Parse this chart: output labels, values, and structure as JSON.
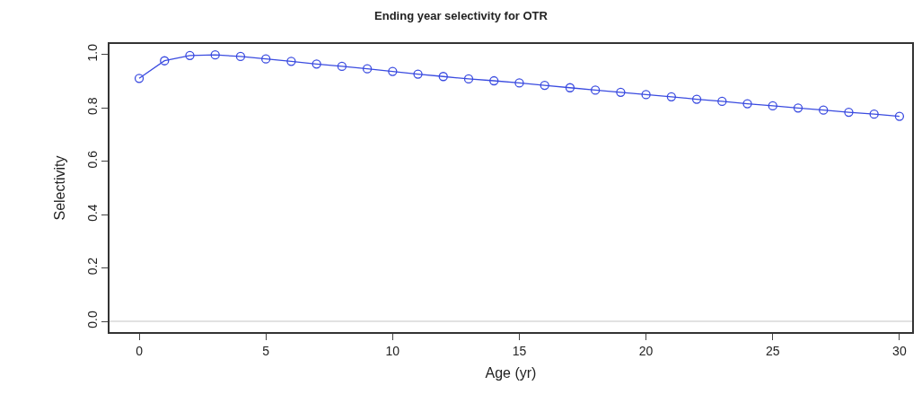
{
  "chart_data": {
    "type": "line",
    "title": "Ending year selectivity for OTR",
    "xlabel": "Age (yr)",
    "ylabel": "Selectivity",
    "x": [
      0,
      1,
      2,
      3,
      4,
      5,
      6,
      7,
      8,
      9,
      10,
      11,
      12,
      13,
      14,
      15,
      16,
      17,
      18,
      19,
      20,
      21,
      22,
      23,
      24,
      25,
      26,
      27,
      28,
      29,
      30
    ],
    "series": [
      {
        "color": "#3a4be0",
        "values": [
          0.911,
          0.977,
          0.997,
          0.999,
          0.993,
          0.984,
          0.975,
          0.965,
          0.956,
          0.947,
          0.937,
          0.927,
          0.918,
          0.909,
          0.902,
          0.894,
          0.885,
          0.876,
          0.867,
          0.859,
          0.85,
          0.842,
          0.833,
          0.825,
          0.816,
          0.808,
          0.8,
          0.792,
          0.784,
          0.777,
          0.769
        ]
      }
    ],
    "xlim": [
      -1.17,
      30.5
    ],
    "xticks": [
      0,
      5,
      10,
      15,
      20,
      25,
      30
    ],
    "ylim": [
      -0.04,
      1.04
    ],
    "yticks": [
      {
        "value": 0,
        "label": "0.0"
      },
      {
        "value": 0.2,
        "label": "0.2"
      },
      {
        "value": 0.4,
        "label": "0.4"
      },
      {
        "value": 0.6,
        "label": "0.6"
      },
      {
        "value": 0.8,
        "label": "0.8"
      },
      {
        "value": 1,
        "label": "1.0"
      }
    ],
    "ref_lines": [
      {
        "axis": "y",
        "value": 0,
        "color": "#d9d9d9"
      }
    ],
    "grid": false,
    "legend": false,
    "marker": "circle",
    "line_style": "solid"
  }
}
